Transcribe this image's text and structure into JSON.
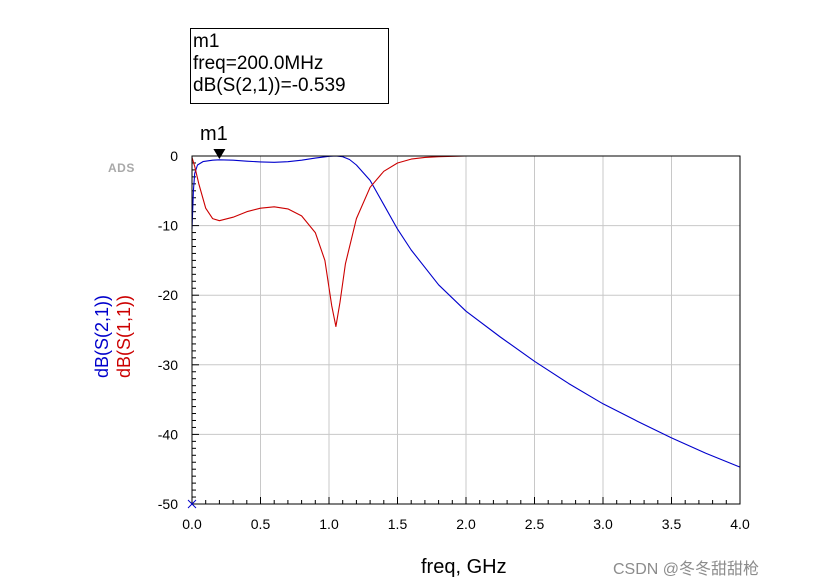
{
  "chart_data": {
    "type": "line",
    "xlabel": "freq, GHz",
    "ylabel_series": [
      "dB(S(2,1))",
      "dB(S(1,1))"
    ],
    "xlim": [
      0.0,
      4.0
    ],
    "ylim": [
      -50,
      0
    ],
    "x_ticks": [
      0.0,
      0.5,
      1.0,
      1.5,
      2.0,
      2.5,
      3.0,
      3.5,
      4.0
    ],
    "x_tick_labels": [
      "0.0",
      "0.5",
      "1.0",
      "1.5",
      "2.0",
      "2.5",
      "3.0",
      "3.5",
      "4.0"
    ],
    "y_ticks": [
      0,
      -10,
      -20,
      -30,
      -40,
      -50
    ],
    "y_tick_labels": [
      "0",
      "-10",
      "-20",
      "-30",
      "-40",
      "-50"
    ],
    "grid": true,
    "series": [
      {
        "name": "dB(S(2,1))",
        "color": "#0000cc",
        "points": [
          [
            0.0,
            -10.5
          ],
          [
            0.01,
            -5.0
          ],
          [
            0.02,
            -2.5
          ],
          [
            0.04,
            -1.3
          ],
          [
            0.08,
            -0.8
          ],
          [
            0.15,
            -0.6
          ],
          [
            0.2,
            -0.539
          ],
          [
            0.3,
            -0.6
          ],
          [
            0.4,
            -0.75
          ],
          [
            0.5,
            -0.85
          ],
          [
            0.6,
            -0.9
          ],
          [
            0.7,
            -0.82
          ],
          [
            0.8,
            -0.6
          ],
          [
            0.9,
            -0.3
          ],
          [
            1.0,
            -0.05
          ],
          [
            1.05,
            0.0
          ],
          [
            1.1,
            -0.1
          ],
          [
            1.15,
            -0.5
          ],
          [
            1.2,
            -1.3
          ],
          [
            1.3,
            -3.5
          ],
          [
            1.4,
            -7.0
          ],
          [
            1.5,
            -10.5
          ],
          [
            1.6,
            -13.5
          ],
          [
            1.8,
            -18.5
          ],
          [
            2.0,
            -22.3
          ],
          [
            2.25,
            -26.0
          ],
          [
            2.5,
            -29.5
          ],
          [
            2.75,
            -32.7
          ],
          [
            3.0,
            -35.6
          ],
          [
            3.25,
            -38.1
          ],
          [
            3.5,
            -40.5
          ],
          [
            3.75,
            -42.7
          ],
          [
            4.0,
            -44.7
          ]
        ]
      },
      {
        "name": "dB(S(1,1))",
        "color": "#cc0000",
        "points": [
          [
            0.0,
            -0.2
          ],
          [
            0.02,
            -1.5
          ],
          [
            0.05,
            -4.0
          ],
          [
            0.1,
            -7.5
          ],
          [
            0.15,
            -9.0
          ],
          [
            0.2,
            -9.3
          ],
          [
            0.3,
            -8.8
          ],
          [
            0.4,
            -8.0
          ],
          [
            0.5,
            -7.5
          ],
          [
            0.6,
            -7.3
          ],
          [
            0.7,
            -7.6
          ],
          [
            0.8,
            -8.6
          ],
          [
            0.9,
            -11.0
          ],
          [
            0.97,
            -15.0
          ],
          [
            1.02,
            -21.5
          ],
          [
            1.05,
            -24.5
          ],
          [
            1.08,
            -21.0
          ],
          [
            1.12,
            -15.5
          ],
          [
            1.2,
            -9.0
          ],
          [
            1.3,
            -4.5
          ],
          [
            1.4,
            -2.2
          ],
          [
            1.5,
            -1.0
          ],
          [
            1.6,
            -0.45
          ],
          [
            1.7,
            -0.2
          ],
          [
            1.8,
            -0.1
          ],
          [
            1.9,
            -0.05
          ],
          [
            2.0,
            0.0
          ],
          [
            2.5,
            0.0
          ],
          [
            3.0,
            0.0
          ],
          [
            3.5,
            0.0
          ],
          [
            4.0,
            0.0
          ]
        ]
      }
    ],
    "marker": {
      "name": "m1",
      "x": 0.2,
      "y": -0.539,
      "lines": [
        "m1",
        "freq=200.0MHz",
        "dB(S(2,1))=-0.539"
      ]
    }
  },
  "ads_logo": "ADS",
  "watermark": "CSDN @冬冬甜甜枪"
}
